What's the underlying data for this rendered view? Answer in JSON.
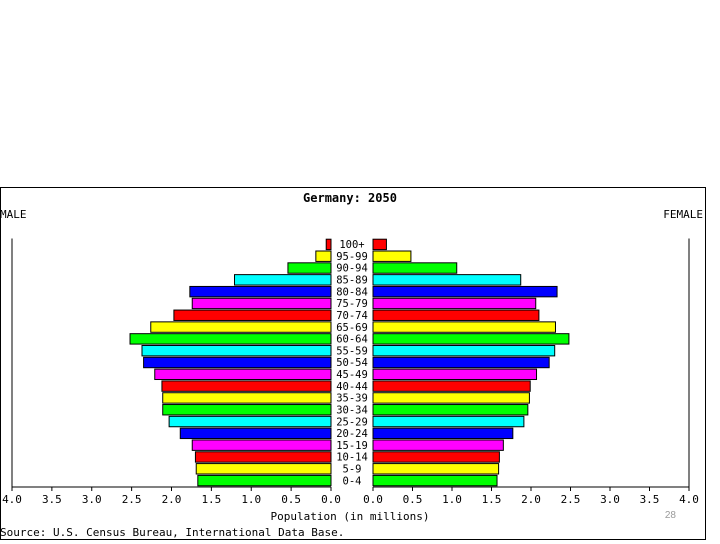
{
  "slide": {
    "page_number": "28"
  },
  "chart_data": {
    "type": "bar",
    "orientation": "horizontal",
    "layout": "population-pyramid",
    "title": "Germany: 2050",
    "left_label": "MALE",
    "right_label": "FEMALE",
    "xlabel": "Population (in millions)",
    "source": "Source: U.S. Census Bureau, International Data Base.",
    "xlim": [
      0,
      4.0
    ],
    "x_ticks": [
      "4.0",
      "3.5",
      "3.0",
      "2.5",
      "2.0",
      "1.5",
      "1.0",
      "0.5",
      "0.0",
      "0.0",
      "0.5",
      "1.0",
      "1.5",
      "2.0",
      "2.5",
      "3.0",
      "3.5",
      "4.0"
    ],
    "categories": [
      "100+",
      "95-99",
      "90-94",
      "85-89",
      "80-84",
      "75-79",
      "70-74",
      "65-69",
      "60-64",
      "55-59",
      "50-54",
      "45-49",
      "40-44",
      "35-39",
      "30-34",
      "25-29",
      "20-24",
      "15-19",
      "10-14",
      "5-9",
      "0-4"
    ],
    "bar_colors": [
      "#ff0000",
      "#ffff00",
      "#00ff00",
      "#00ffff",
      "#0000ff",
      "#ff00ff",
      "#ff0000",
      "#ffff00",
      "#00ff00",
      "#00ffff",
      "#0000ff",
      "#ff00ff",
      "#ff0000",
      "#ffff00",
      "#00ff00",
      "#00ffff",
      "#0000ff",
      "#ff00ff",
      "#ff0000",
      "#ffff00",
      "#00ff00"
    ],
    "series": [
      {
        "name": "MALE",
        "values": [
          0.06,
          0.19,
          0.54,
          1.21,
          1.77,
          1.74,
          1.97,
          2.26,
          2.52,
          2.37,
          2.35,
          2.21,
          2.12,
          2.11,
          2.11,
          2.03,
          1.89,
          1.74,
          1.7,
          1.69,
          1.67
        ]
      },
      {
        "name": "FEMALE",
        "values": [
          0.17,
          0.48,
          1.06,
          1.87,
          2.33,
          2.06,
          2.1,
          2.31,
          2.48,
          2.3,
          2.23,
          2.07,
          1.99,
          1.98,
          1.96,
          1.91,
          1.77,
          1.65,
          1.6,
          1.59,
          1.57
        ]
      }
    ]
  }
}
